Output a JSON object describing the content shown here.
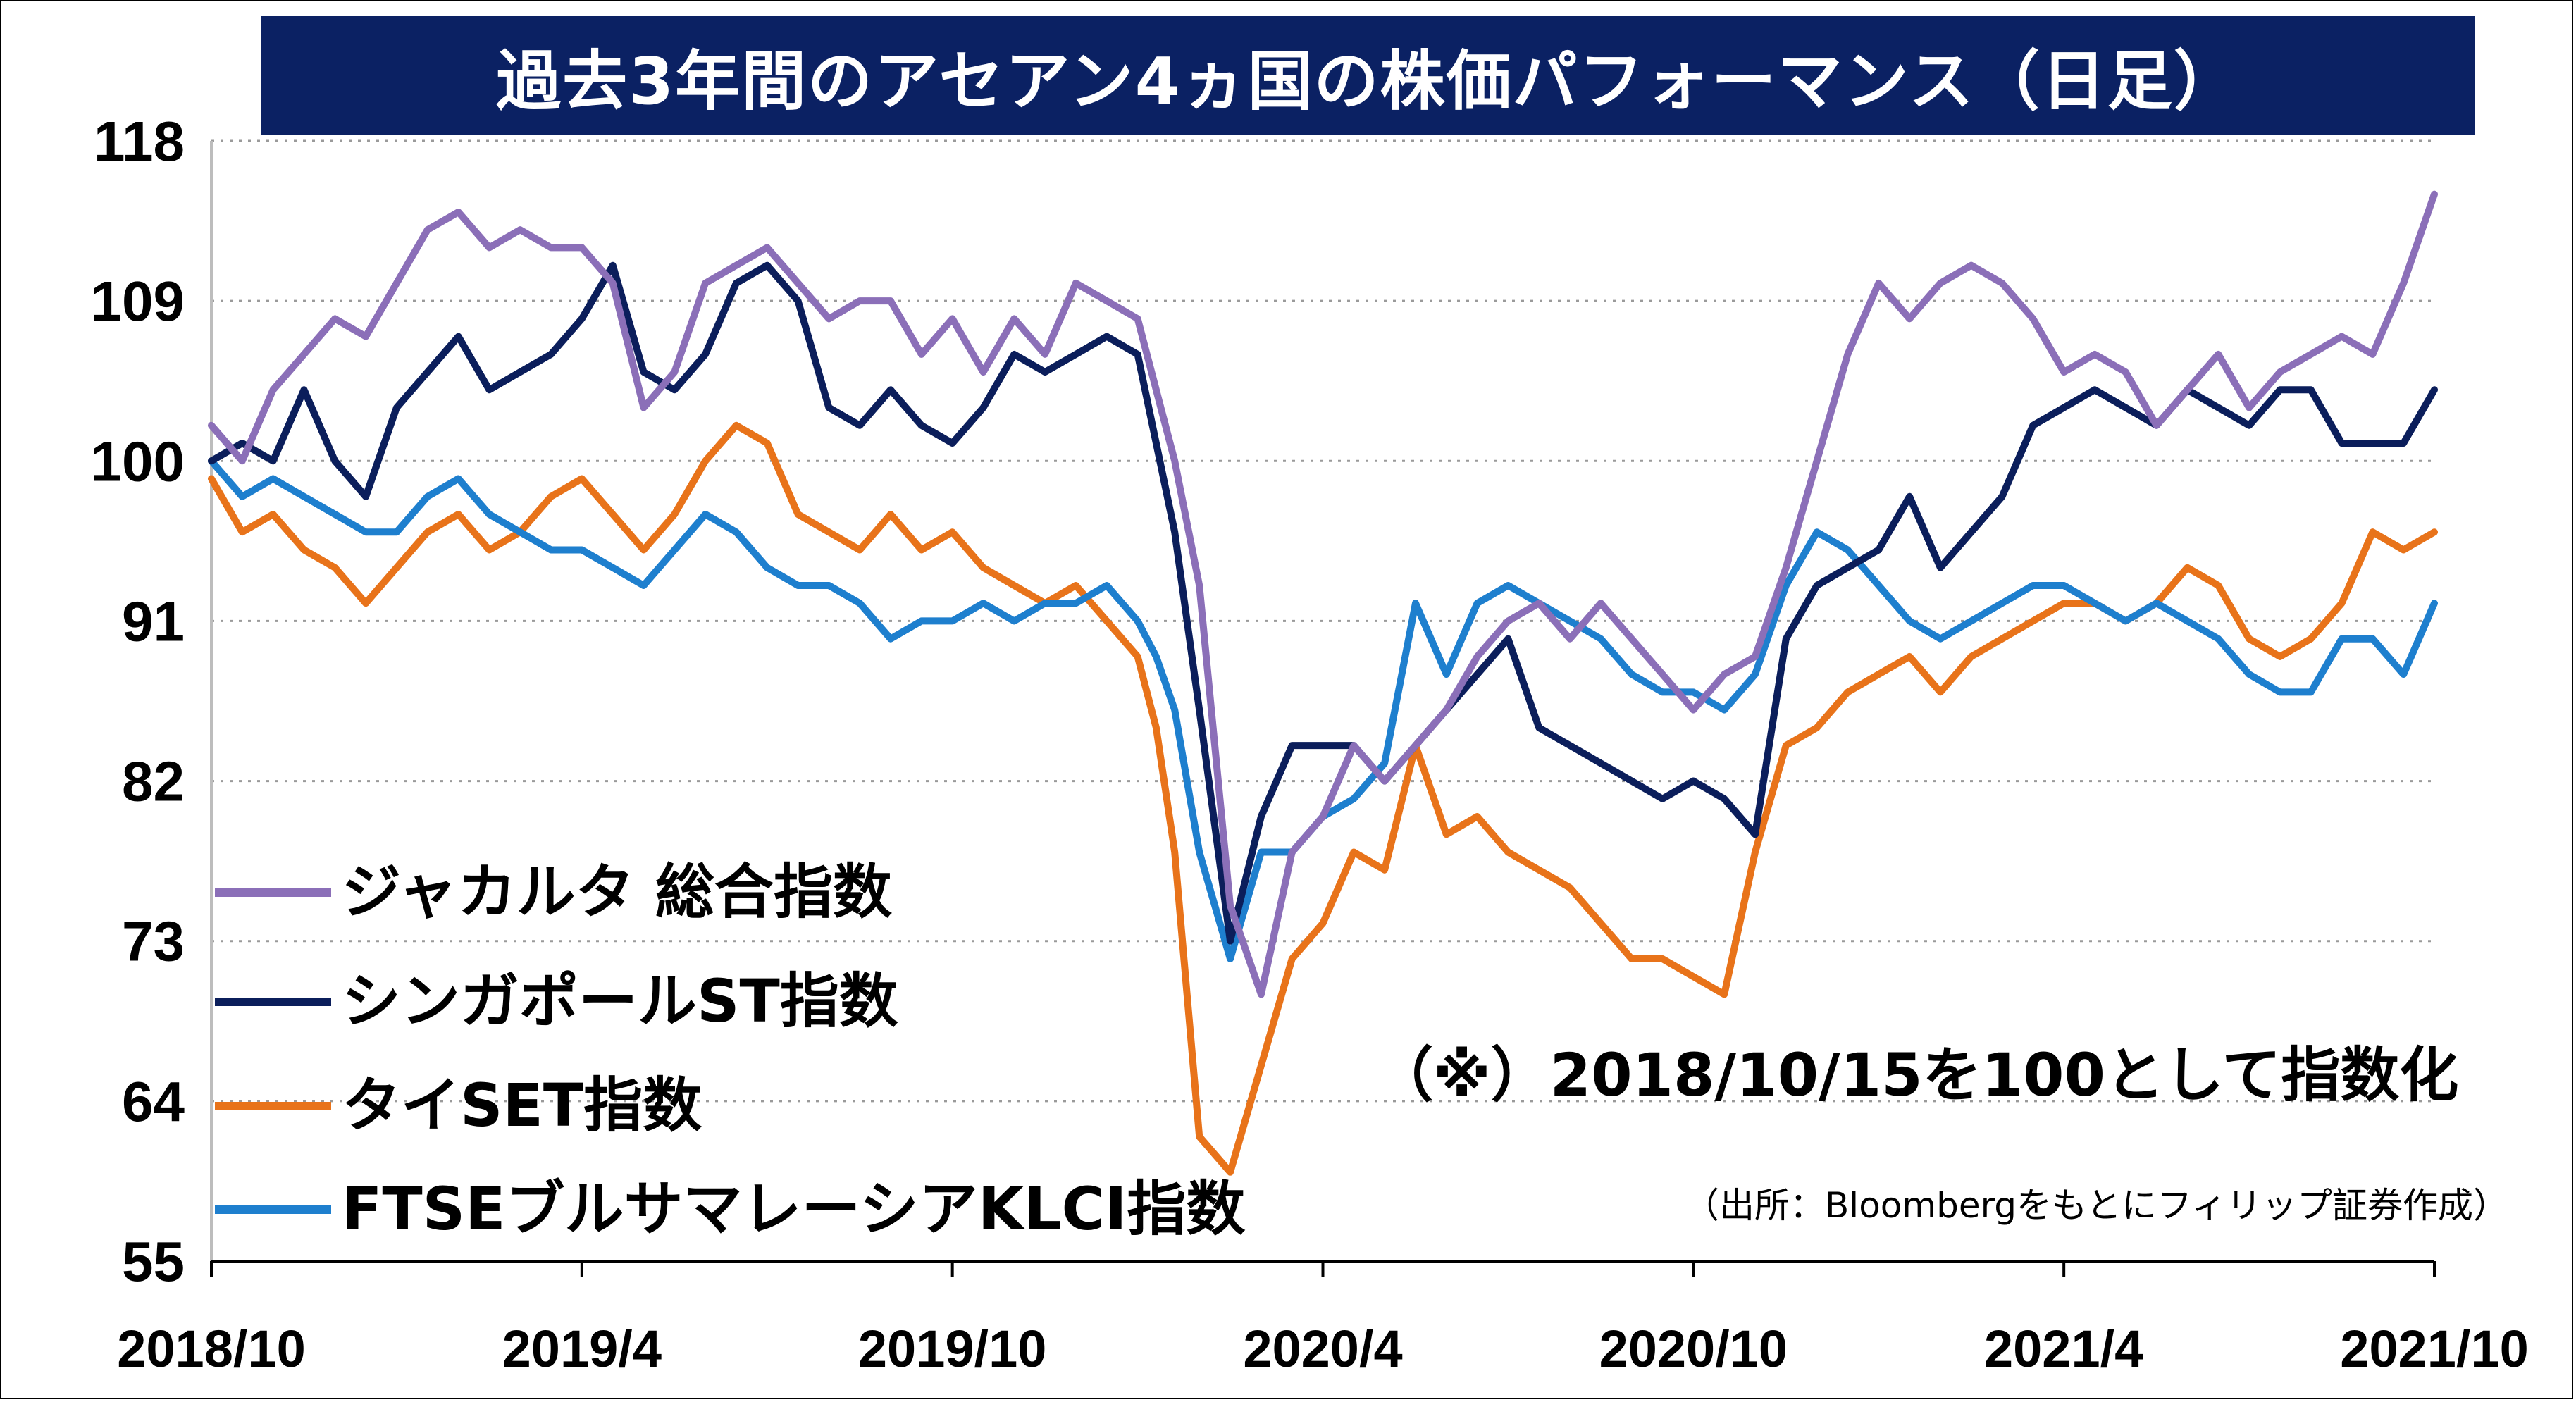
{
  "title": "過去3年間のアセアン4ヵ国の株価パフォーマンス（日足）",
  "note": "（※）2018/10/15を100として指数化",
  "source": "（出所：Bloombergをもとにフィリップ証券作成）",
  "chart_data": {
    "type": "line",
    "title": "過去3年間のアセアン4ヵ国の株価パフォーマンス（日足）",
    "ylim": [
      55,
      118
    ],
    "yticks": [
      55,
      64,
      73,
      82,
      91,
      100,
      109,
      118
    ],
    "ytick_labels": [
      "55",
      "64",
      "73",
      "82",
      "91",
      "100",
      "109",
      "118"
    ],
    "xticks": [
      "2018/10",
      "2019/4",
      "2019/10",
      "2020/4",
      "2020/10",
      "2021/4",
      "2021/10"
    ],
    "xlim": [
      0,
      36
    ],
    "grid": "horizontal dotted",
    "legend_position": "bottom-left",
    "series": [
      {
        "name": "ジャカルタ 総合指数",
        "color": "#8b6fb8",
        "x": [
          0,
          0.5,
          1,
          1.5,
          2,
          2.5,
          3,
          3.5,
          4,
          4.5,
          5,
          5.5,
          6,
          6.5,
          7,
          7.5,
          8,
          8.5,
          9,
          9.5,
          10,
          10.5,
          11,
          11.5,
          12,
          12.5,
          13,
          13.5,
          14,
          14.5,
          15,
          15.3,
          15.6,
          16,
          16.5,
          17,
          17.5,
          18,
          18.5,
          19,
          19.5,
          20,
          20.5,
          21,
          21.5,
          22,
          22.5,
          23,
          23.5,
          24,
          24.5,
          25,
          25.5,
          26,
          26.5,
          27,
          27.5,
          28,
          28.5,
          29,
          29.5,
          30,
          30.5,
          31,
          31.5,
          32,
          32.5,
          33,
          33.5,
          34,
          34.5,
          35,
          35.5,
          36
        ],
        "values": [
          102,
          100,
          104,
          106,
          108,
          107,
          110,
          113,
          114,
          112,
          113,
          112,
          112,
          110,
          103,
          105,
          110,
          111,
          112,
          110,
          108,
          109,
          109,
          106,
          108,
          105,
          108,
          106,
          110,
          109,
          108,
          104,
          100,
          93,
          75,
          70,
          78,
          80,
          84,
          82,
          84,
          86,
          89,
          91,
          92,
          90,
          92,
          90,
          88,
          86,
          88,
          89,
          94,
          100,
          106,
          110,
          108,
          110,
          111,
          110,
          108,
          105,
          106,
          105,
          102,
          104,
          106,
          103,
          105,
          106,
          107,
          106,
          110,
          115
        ]
      },
      {
        "name": "シンガポールST指数",
        "color": "#0b1e5b",
        "x": [
          0,
          0.5,
          1,
          1.5,
          2,
          2.5,
          3,
          3.5,
          4,
          4.5,
          5,
          5.5,
          6,
          6.5,
          7,
          7.5,
          8,
          8.5,
          9,
          9.5,
          10,
          10.5,
          11,
          11.5,
          12,
          12.5,
          13,
          13.5,
          14,
          14.5,
          15,
          15.3,
          15.6,
          16,
          16.5,
          17,
          17.5,
          18,
          18.5,
          19,
          19.5,
          20,
          20.5,
          21,
          21.5,
          22,
          22.5,
          23,
          23.5,
          24,
          24.5,
          25,
          25.5,
          26,
          26.5,
          27,
          27.5,
          28,
          28.5,
          29,
          29.5,
          30,
          30.5,
          31,
          31.5,
          32,
          32.5,
          33,
          33.5,
          34,
          34.5,
          35,
          35.5,
          36
        ],
        "values": [
          100,
          101,
          100,
          104,
          100,
          98,
          103,
          105,
          107,
          104,
          105,
          106,
          108,
          111,
          105,
          104,
          106,
          110,
          111,
          109,
          103,
          102,
          104,
          102,
          101,
          103,
          106,
          105,
          106,
          107,
          106,
          101,
          96,
          86,
          73,
          80,
          84,
          84,
          84,
          82,
          84,
          86,
          88,
          90,
          85,
          84,
          83,
          82,
          81,
          82,
          81,
          79,
          90,
          93,
          94,
          95,
          98,
          94,
          96,
          98,
          102,
          103,
          104,
          103,
          102,
          104,
          103,
          102,
          104,
          104,
          101,
          101,
          101,
          104
        ]
      },
      {
        "name": "タイSET指数",
        "color": "#e8731a",
        "x": [
          0,
          0.5,
          1,
          1.5,
          2,
          2.5,
          3,
          3.5,
          4,
          4.5,
          5,
          5.5,
          6,
          6.5,
          7,
          7.5,
          8,
          8.5,
          9,
          9.5,
          10,
          10.5,
          11,
          11.5,
          12,
          12.5,
          13,
          13.5,
          14,
          14.5,
          15,
          15.3,
          15.6,
          16,
          16.5,
          17,
          17.5,
          18,
          18.5,
          19,
          19.5,
          20,
          20.5,
          21,
          21.5,
          22,
          22.5,
          23,
          23.5,
          24,
          24.5,
          25,
          25.5,
          26,
          26.5,
          27,
          27.5,
          28,
          28.5,
          29,
          29.5,
          30,
          30.5,
          31,
          31.5,
          32,
          32.5,
          33,
          33.5,
          34,
          34.5,
          35,
          35.5,
          36
        ],
        "values": [
          99,
          96,
          97,
          95,
          94,
          92,
          94,
          96,
          97,
          95,
          96,
          98,
          99,
          97,
          95,
          97,
          100,
          102,
          101,
          97,
          96,
          95,
          97,
          95,
          96,
          94,
          93,
          92,
          93,
          91,
          89,
          85,
          78,
          62,
          60,
          66,
          72,
          74,
          78,
          77,
          84,
          79,
          80,
          78,
          77,
          76,
          74,
          72,
          72,
          71,
          70,
          78,
          84,
          85,
          87,
          88,
          89,
          87,
          89,
          90,
          91,
          92,
          92,
          91,
          92,
          94,
          93,
          90,
          89,
          90,
          92,
          96,
          95,
          96
        ]
      },
      {
        "name": "FTSEブルサマレーシアKLCI指数",
        "color": "#1e7fce",
        "x": [
          0,
          0.5,
          1,
          1.5,
          2,
          2.5,
          3,
          3.5,
          4,
          4.5,
          5,
          5.5,
          6,
          6.5,
          7,
          7.5,
          8,
          8.5,
          9,
          9.5,
          10,
          10.5,
          11,
          11.5,
          12,
          12.5,
          13,
          13.5,
          14,
          14.5,
          15,
          15.3,
          15.6,
          16,
          16.5,
          17,
          17.5,
          18,
          18.5,
          19,
          19.5,
          20,
          20.5,
          21,
          21.5,
          22,
          22.5,
          23,
          23.5,
          24,
          24.5,
          25,
          25.5,
          26,
          26.5,
          27,
          27.5,
          28,
          28.5,
          29,
          29.5,
          30,
          30.5,
          31,
          31.5,
          32,
          32.5,
          33,
          33.5,
          34,
          34.5,
          35,
          35.5,
          36
        ],
        "values": [
          100,
          98,
          99,
          98,
          97,
          96,
          96,
          98,
          99,
          97,
          96,
          95,
          95,
          94,
          93,
          95,
          97,
          96,
          94,
          93,
          93,
          92,
          90,
          91,
          91,
          92,
          91,
          92,
          92,
          93,
          91,
          89,
          86,
          78,
          72,
          78,
          78,
          80,
          81,
          83,
          92,
          88,
          92,
          93,
          92,
          91,
          90,
          88,
          87,
          87,
          86,
          88,
          93,
          96,
          95,
          93,
          91,
          90,
          91,
          92,
          93,
          93,
          92,
          91,
          92,
          91,
          90,
          88,
          87,
          87,
          90,
          90,
          88,
          92
        ]
      }
    ]
  }
}
